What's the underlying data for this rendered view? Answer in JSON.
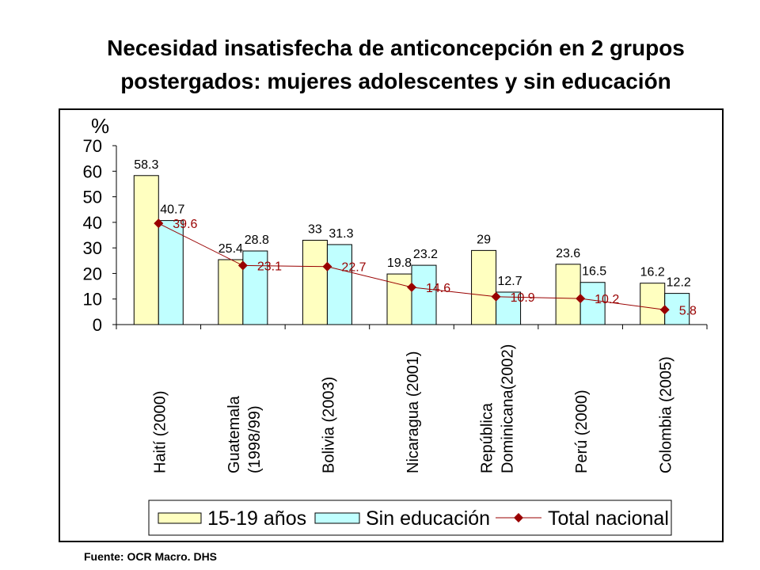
{
  "title_line1": "Necesidad insatisfecha de anticoncepción en 2 grupos",
  "title_line2": "postergados: mujeres adolescentes y sin educación",
  "source": "Fuente: OCR Macro. DHS",
  "chart_data": {
    "type": "bar",
    "ylabel": "%",
    "ylim": [
      0,
      70
    ],
    "yticks": [
      0,
      10,
      20,
      30,
      40,
      50,
      60,
      70
    ],
    "categories": [
      [
        "Haití (2000)"
      ],
      [
        "Guatemala",
        "(1998/99)"
      ],
      [
        "Bolivia (2003)"
      ],
      [
        "Nicaragua (2001)"
      ],
      [
        "República",
        "Dominicana(2002)"
      ],
      [
        "Perú (2000)"
      ],
      [
        "Colombia (2005)"
      ]
    ],
    "series": [
      {
        "name": "15-19 años",
        "type": "bar",
        "color": "#FFFFC0",
        "values": [
          58.3,
          25.4,
          33,
          19.8,
          29,
          23.6,
          16.2
        ]
      },
      {
        "name": "Sin educación",
        "type": "bar",
        "color": "#C0FFFF",
        "values": [
          40.7,
          28.8,
          31.3,
          23.2,
          12.7,
          16.5,
          12.2
        ]
      },
      {
        "name": "Total nacional",
        "type": "line",
        "color": "#990000",
        "values": [
          39.6,
          23.1,
          22.7,
          14.6,
          10.9,
          10.2,
          5.8
        ]
      }
    ],
    "legend": "bottom"
  }
}
